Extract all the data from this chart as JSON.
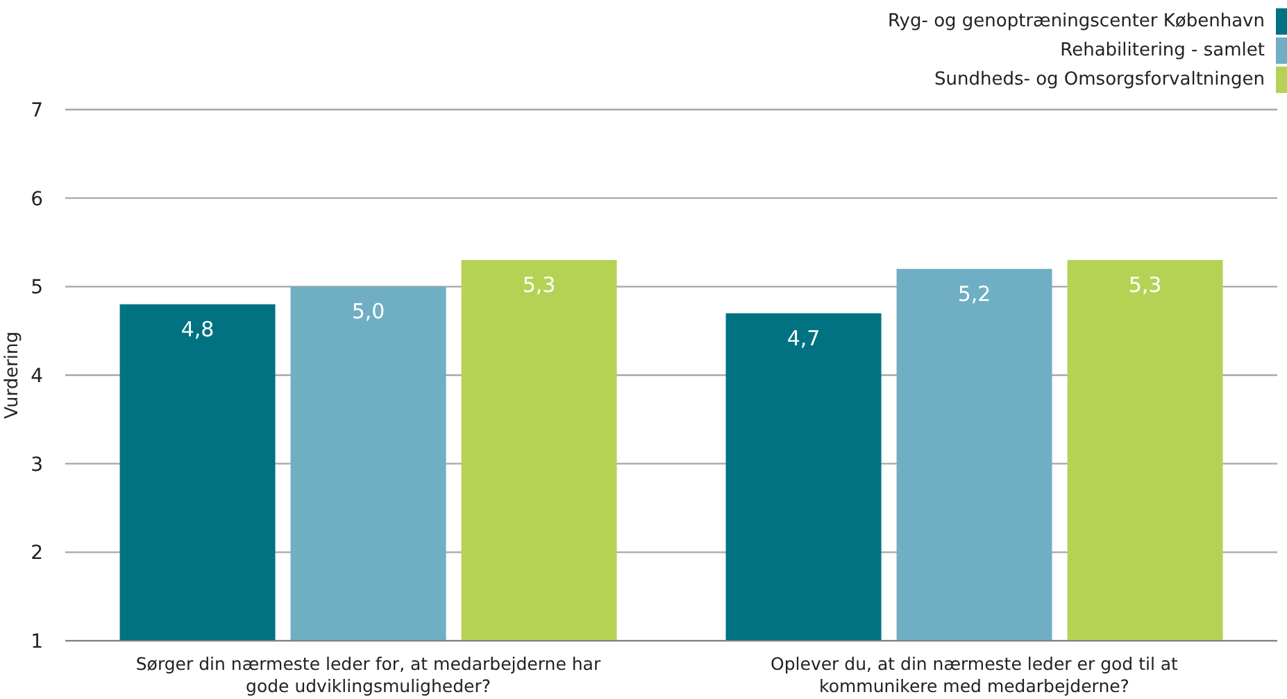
{
  "chart_data": {
    "type": "bar",
    "ylabel": "Vurdering",
    "categories": [
      "Sørger din nærmeste leder for, at medarbejderne har gode udviklingsmuligheder?",
      "Oplever du, at din nærmeste leder er god til at kommunikere med medarbejderne?"
    ],
    "series": [
      {
        "name": "Ryg- og genoptræningscenter København",
        "color": "#007282",
        "values": [
          4.8,
          4.7
        ],
        "value_labels": [
          "4,8",
          "4,7"
        ]
      },
      {
        "name": "Rehabilitering - samlet",
        "color": "#70aec4",
        "values": [
          5.0,
          5.2
        ],
        "value_labels": [
          "5,0",
          "5,2"
        ]
      },
      {
        "name": "Sundheds- og Omsorgsforvaltningen",
        "color": "#b5d255",
        "values": [
          5.3,
          5.3
        ],
        "value_labels": [
          "5,3",
          "5,3"
        ]
      }
    ],
    "ylim": [
      1,
      7
    ],
    "yticks": [
      1,
      2,
      3,
      4,
      5,
      6,
      7
    ],
    "grid": "y",
    "legend": "top right"
  }
}
